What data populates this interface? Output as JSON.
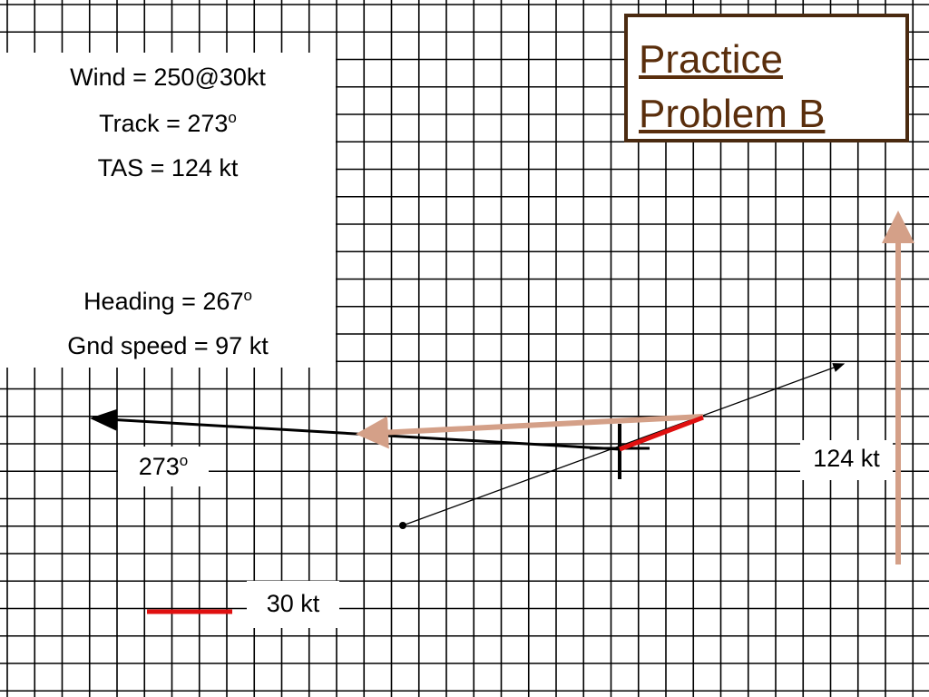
{
  "title": {
    "line1": "Practice",
    "line2": "Problem B"
  },
  "given": [
    {
      "text": "Wind = 250@30kt"
    },
    {
      "text": "Track = 273",
      "sup": "o"
    },
    {
      "text": "TAS = 124 kt"
    }
  ],
  "answers": [
    {
      "text": "Heading = 267",
      "sup": "o"
    },
    {
      "text": "Gnd speed = 97 kt"
    }
  ],
  "labels": {
    "track": {
      "text": "273",
      "sup": "o"
    },
    "tas": {
      "text": "124 kt"
    },
    "wind_scale": {
      "text": "30 kt"
    }
  }
}
